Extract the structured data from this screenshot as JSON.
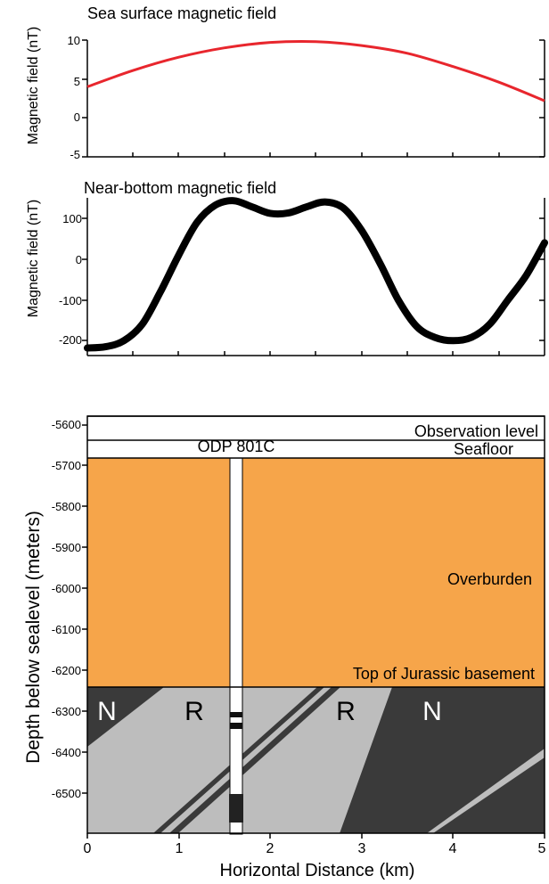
{
  "colors": {
    "sea_line": "#e8262d",
    "near_line": "#000000",
    "overburden": "#f6a54a",
    "normal_block": "#3a3a3a",
    "reversed_block": "#bdbdbd"
  },
  "chart_data": [
    {
      "type": "line",
      "title": "Sea surface magnetic field",
      "ylabel": "Magnetic field (nT)",
      "xlim": [
        0,
        5
      ],
      "ylim": [
        -5,
        10
      ],
      "yticks": [
        "10",
        "5",
        "0",
        "-5"
      ],
      "series": [
        {
          "x": [
            0,
            0.5,
            1,
            1.5,
            2,
            2.5,
            3,
            3.5,
            4,
            4.5,
            5
          ],
          "values": [
            4.0,
            6.1,
            7.8,
            9.0,
            9.7,
            9.8,
            9.3,
            8.3,
            6.6,
            4.6,
            2.2
          ]
        }
      ]
    },
    {
      "type": "line",
      "title": "Near-bottom magnetic field",
      "ylabel": "Magnetic field (nT)",
      "xlim": [
        0,
        5
      ],
      "ylim": [
        -230,
        150
      ],
      "yticks": [
        "100",
        "0",
        "-100",
        "-200"
      ],
      "series": [
        {
          "x": [
            0,
            0.2,
            0.4,
            0.6,
            0.8,
            1.0,
            1.2,
            1.4,
            1.6,
            1.8,
            2.0,
            2.2,
            2.4,
            2.6,
            2.8,
            3.0,
            3.2,
            3.4,
            3.6,
            3.8,
            4.0,
            4.2,
            4.4,
            4.6,
            4.8,
            5.0
          ],
          "values": [
            -218,
            -215,
            -200,
            -160,
            -80,
            10,
            90,
            132,
            143,
            128,
            112,
            113,
            128,
            140,
            125,
            70,
            -10,
            -100,
            -165,
            -192,
            -200,
            -192,
            -160,
            -100,
            -40,
            40
          ]
        }
      ]
    },
    {
      "type": "cross-section",
      "ylabel": "Depth below sealevel (meters)",
      "xlabel": "Horizontal Distance (km)",
      "xlim": [
        0,
        5
      ],
      "ylim": [
        -5570,
        -6580
      ],
      "xticks": [
        "0",
        "1",
        "2",
        "3",
        "4",
        "5"
      ],
      "yticks": [
        "-5600",
        "-5700",
        "-5800",
        "-5900",
        "-6000",
        "-6100",
        "-6200",
        "-6300",
        "-6400",
        "-6500"
      ],
      "observation_level": -5580,
      "seafloor": -5680,
      "basement_top": -6230,
      "labels": {
        "observation": "Observation level",
        "seafloor": "Seafloor",
        "borehole": "ODP 801C",
        "overburden": "Overburden",
        "basement": "Top of Jurassic basement",
        "polarity": [
          "N",
          "R",
          "R",
          "N"
        ]
      },
      "borehole_x": 1.65
    }
  ]
}
